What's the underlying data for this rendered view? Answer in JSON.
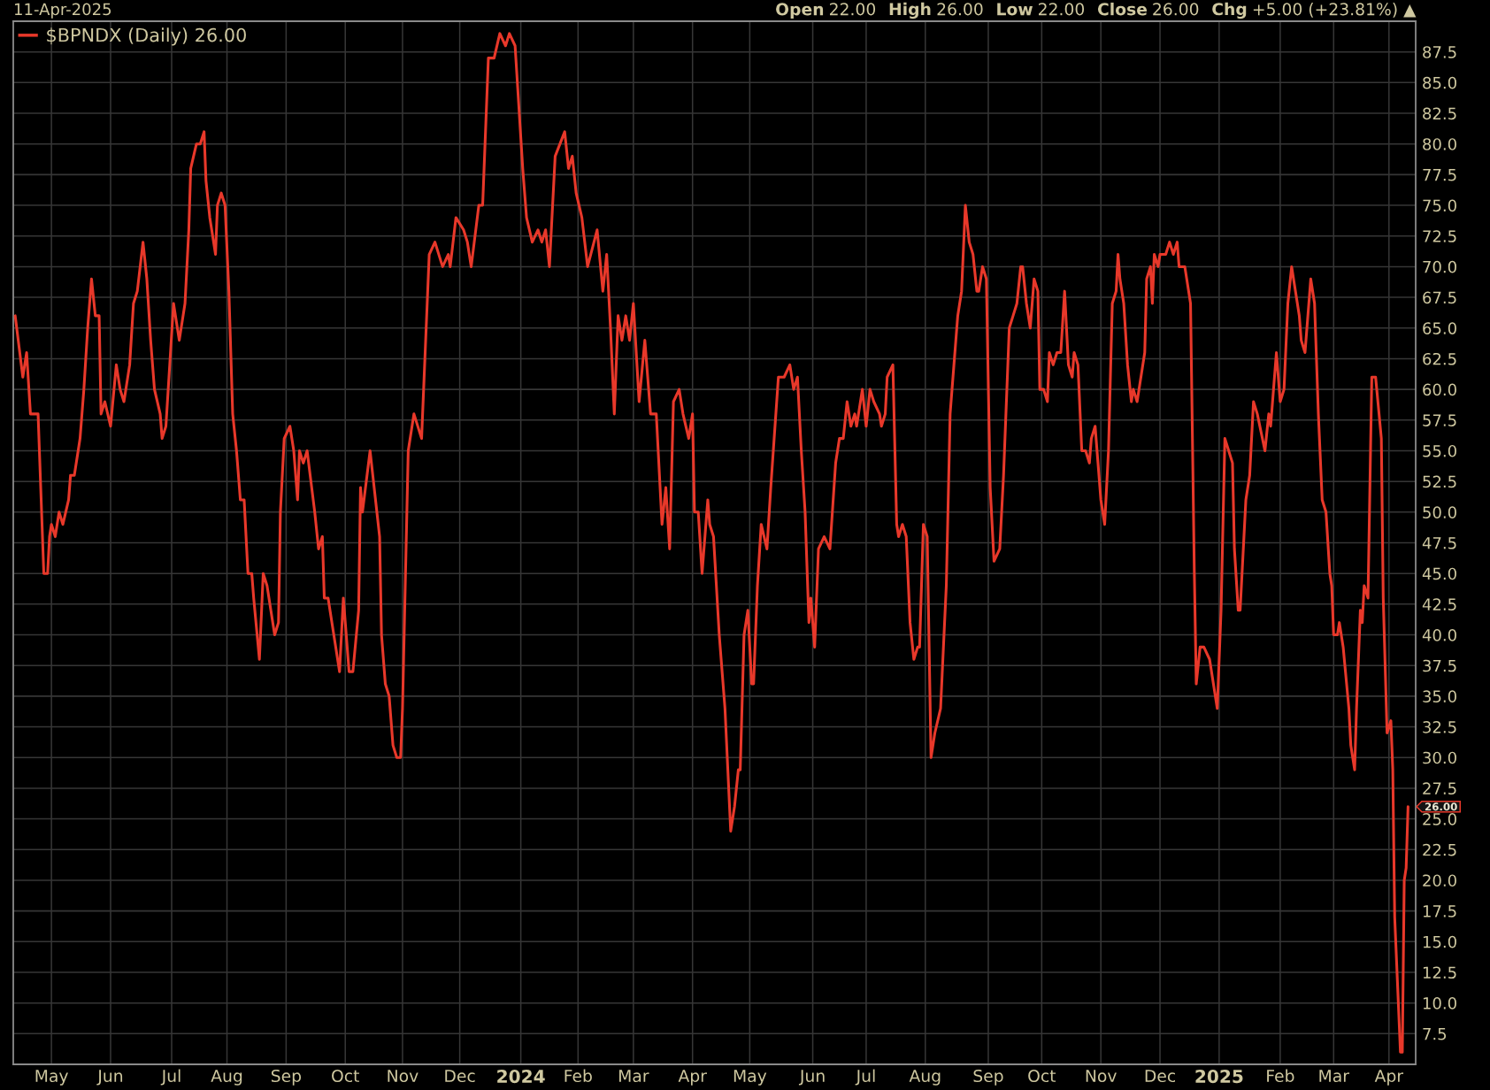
{
  "chart_data": {
    "type": "line",
    "annotations": [
      "11-Apr-2025",
      "Open 22.00",
      "High 26.00",
      "Low 22.00",
      "Close 26.00",
      "Chg +5.00 (+23.81%) ▲",
      {
        "text": "26.00",
        "x": "2025-04-11",
        "y": 26
      }
    ],
    "x": [
      "2023-04-12",
      "2023-04-16",
      "2023-04-18",
      "2023-04-20",
      "2023-04-24",
      "2023-04-27",
      "2023-04-29",
      "2023-04-30",
      "2023-05-01",
      "2023-05-03",
      "2023-05-05",
      "2023-05-07",
      "2023-05-10",
      "2023-05-11",
      "2023-05-13",
      "2023-05-15",
      "2023-05-16",
      "2023-05-18",
      "2023-05-20",
      "2023-05-22",
      "2023-05-24",
      "2023-05-26",
      "2023-05-27",
      "2023-05-29",
      "2023-06-01",
      "2023-06-04",
      "2023-06-06",
      "2023-06-08",
      "2023-06-11",
      "2023-06-13",
      "2023-06-15",
      "2023-06-18",
      "2023-06-20",
      "2023-06-22",
      "2023-06-24",
      "2023-06-27",
      "2023-06-28",
      "2023-06-30",
      "2023-07-02",
      "2023-07-04",
      "2023-07-07",
      "2023-07-10",
      "2023-07-12",
      "2023-07-13",
      "2023-07-16",
      "2023-07-18",
      "2023-07-20",
      "2023-07-21",
      "2023-07-23",
      "2023-07-26",
      "2023-07-27",
      "2023-07-29",
      "2023-07-31",
      "2023-08-02",
      "2023-08-04",
      "2023-08-06",
      "2023-08-08",
      "2023-08-10",
      "2023-08-12",
      "2023-08-14",
      "2023-08-15",
      "2023-08-18",
      "2023-08-20",
      "2023-08-22",
      "2023-08-25",
      "2023-08-26",
      "2023-08-28",
      "2023-08-29",
      "2023-08-31",
      "2023-09-03",
      "2023-09-05",
      "2023-09-07",
      "2023-09-08",
      "2023-09-10",
      "2023-09-12",
      "2023-09-16",
      "2023-09-18",
      "2023-09-20",
      "2023-09-21",
      "2023-09-23",
      "2023-09-25",
      "2023-09-29",
      "2023-10-01",
      "2023-10-04",
      "2023-10-06",
      "2023-10-09",
      "2023-10-10",
      "2023-10-11",
      "2023-10-15",
      "2023-10-20",
      "2023-10-21",
      "2023-10-23",
      "2023-10-25",
      "2023-10-27",
      "2023-10-29",
      "2023-10-31",
      "2023-11-01",
      "2023-11-04",
      "2023-11-07",
      "2023-11-11",
      "2023-11-15",
      "2023-11-18",
      "2023-11-22",
      "2023-11-25",
      "2023-11-26",
      "2023-11-29",
      "2023-12-03",
      "2023-12-05",
      "2023-12-07",
      "2023-12-11",
      "2023-12-13",
      "2023-12-16",
      "2023-12-19",
      "2023-12-22",
      "2023-12-25",
      "2023-12-27",
      "2023-12-30",
      "2024-01-03",
      "2024-01-05",
      "2024-01-08",
      "2024-01-11",
      "2024-01-13",
      "2024-01-15",
      "2024-01-17",
      "2024-01-20",
      "2024-01-25",
      "2024-01-27",
      "2024-01-29",
      "2024-01-31",
      "2024-02-03",
      "2024-02-06",
      "2024-02-11",
      "2024-02-14",
      "2024-02-16",
      "2024-02-18",
      "2024-02-20",
      "2024-02-22",
      "2024-02-24",
      "2024-02-26",
      "2024-02-28",
      "2024-03-01",
      "2024-03-04",
      "2024-03-07",
      "2024-03-10",
      "2024-03-13",
      "2024-03-16",
      "2024-03-18",
      "2024-03-20",
      "2024-03-22",
      "2024-03-25",
      "2024-03-27",
      "2024-03-30",
      "2024-04-01",
      "2024-04-02",
      "2024-04-04",
      "2024-04-06",
      "2024-04-09",
      "2024-04-10",
      "2024-04-12",
      "2024-04-15",
      "2024-04-18",
      "2024-04-21",
      "2024-04-23",
      "2024-04-25",
      "2024-04-26",
      "2024-04-28",
      "2024-04-30",
      "2024-05-02",
      "2024-05-03",
      "2024-05-05",
      "2024-05-07",
      "2024-05-10",
      "2024-05-12",
      "2024-05-16",
      "2024-05-19",
      "2024-05-22",
      "2024-05-24",
      "2024-05-26",
      "2024-05-28",
      "2024-05-30",
      "2024-06-01",
      "2024-06-02",
      "2024-06-04",
      "2024-06-06",
      "2024-06-09",
      "2024-06-12",
      "2024-06-15",
      "2024-06-17",
      "2024-06-19",
      "2024-06-21",
      "2024-06-23",
      "2024-06-25",
      "2024-06-26",
      "2024-06-29",
      "2024-07-01",
      "2024-07-03",
      "2024-07-05",
      "2024-07-08",
      "2024-07-09",
      "2024-07-11",
      "2024-07-12",
      "2024-07-15",
      "2024-07-17",
      "2024-07-18",
      "2024-07-20",
      "2024-07-22",
      "2024-07-24",
      "2024-07-26",
      "2024-07-28",
      "2024-07-29",
      "2024-07-31",
      "2024-08-02",
      "2024-08-04",
      "2024-08-06",
      "2024-08-09",
      "2024-08-12",
      "2024-08-14",
      "2024-08-17",
      "2024-08-18",
      "2024-08-20",
      "2024-08-22",
      "2024-08-24",
      "2024-08-26",
      "2024-08-28",
      "2024-08-29",
      "2024-08-31",
      "2024-09-02",
      "2024-09-04",
      "2024-09-06",
      "2024-09-09",
      "2024-09-11",
      "2024-09-14",
      "2024-09-16",
      "2024-09-18",
      "2024-09-20",
      "2024-09-21",
      "2024-09-23",
      "2024-09-25",
      "2024-09-27",
      "2024-09-29",
      "2024-09-30",
      "2024-10-02",
      "2024-10-04",
      "2024-10-05",
      "2024-10-07",
      "2024-10-09",
      "2024-10-11",
      "2024-10-13",
      "2024-10-15",
      "2024-10-17",
      "2024-10-18",
      "2024-10-20",
      "2024-10-22",
      "2024-10-24",
      "2024-10-26",
      "2024-10-27",
      "2024-10-29",
      "2024-10-31",
      "2024-11-01",
      "2024-11-03",
      "2024-11-05",
      "2024-11-07",
      "2024-11-09",
      "2024-11-10",
      "2024-11-11",
      "2024-11-13",
      "2024-11-15",
      "2024-11-17",
      "2024-11-18",
      "2024-11-20",
      "2024-11-22",
      "2024-11-24",
      "2024-11-25",
      "2024-11-27",
      "2024-11-28",
      "2024-11-29",
      "2024-12-01",
      "2024-12-02",
      "2024-12-05",
      "2024-12-07",
      "2024-12-09",
      "2024-12-11",
      "2024-12-12",
      "2024-12-15",
      "2024-12-16",
      "2024-12-18",
      "2024-12-20",
      "2024-12-21",
      "2024-12-23",
      "2024-12-25",
      "2024-12-28",
      "2024-12-30",
      "2025-01-01",
      "2025-01-03",
      "2025-01-05",
      "2025-01-07",
      "2025-01-09",
      "2025-01-10",
      "2025-01-12",
      "2025-01-13",
      "2025-01-16",
      "2025-01-18",
      "2025-01-20",
      "2025-01-22",
      "2025-01-26",
      "2025-01-28",
      "2025-01-29",
      "2025-02-01",
      "2025-02-03",
      "2025-02-05",
      "2025-02-07",
      "2025-02-09",
      "2025-02-11",
      "2025-02-13",
      "2025-02-14",
      "2025-02-16",
      "2025-02-18",
      "2025-02-19",
      "2025-02-21",
      "2025-02-23",
      "2025-02-25",
      "2025-02-27",
      "2025-03-01",
      "2025-03-02",
      "2025-03-03",
      "2025-03-05",
      "2025-03-06",
      "2025-03-08",
      "2025-03-11",
      "2025-03-12",
      "2025-03-14",
      "2025-03-15",
      "2025-03-17",
      "2025-03-18",
      "2025-03-19",
      "2025-03-21",
      "2025-03-23",
      "2025-03-25",
      "2025-03-28",
      "2025-03-29",
      "2025-03-31",
      "2025-04-02",
      "2025-04-03",
      "2025-04-04",
      "2025-04-07",
      "2025-04-08",
      "2025-04-09",
      "2025-04-10",
      "2025-04-11"
    ],
    "series": [
      {
        "name": "$BPNDX (Daily) 26.00",
        "color": "#e8382a",
        "values": [
          66,
          61,
          63,
          58,
          58,
          45,
          45,
          48,
          49,
          48,
          50,
          49,
          51,
          53,
          53,
          55,
          56,
          60,
          65,
          69,
          66,
          66,
          58,
          59,
          57,
          62,
          60,
          59,
          62,
          67,
          68,
          72,
          69,
          64,
          60,
          58,
          56,
          57,
          62,
          67,
          64,
          67,
          73,
          78,
          80,
          80,
          81,
          77,
          74,
          71,
          75,
          76,
          75,
          68,
          58,
          55,
          51,
          51,
          45,
          45,
          43,
          38,
          45,
          44,
          41,
          40,
          41,
          50,
          56,
          57,
          55,
          51,
          55,
          54,
          55,
          50,
          47,
          48,
          43,
          43,
          41,
          37,
          43,
          37,
          37,
          42,
          52,
          50,
          55,
          48,
          40,
          36,
          35,
          31,
          30,
          30,
          34,
          55,
          58,
          56,
          71,
          72,
          70,
          71,
          70,
          74,
          73,
          72,
          70,
          75,
          75,
          87,
          87,
          89,
          88,
          89,
          88,
          78,
          74,
          72,
          73,
          72,
          73,
          70,
          79,
          81,
          78,
          79,
          76,
          74,
          70,
          73,
          68,
          71,
          65,
          58,
          66,
          64,
          66,
          64,
          67,
          59,
          64,
          58,
          58,
          49,
          52,
          47,
          59,
          60,
          58,
          56,
          58,
          50,
          50,
          45,
          51,
          49,
          48,
          40,
          34,
          24,
          26,
          29,
          29,
          40,
          42,
          36,
          36,
          44,
          49,
          47,
          52,
          61,
          61,
          62,
          60,
          61,
          55,
          50,
          41,
          43,
          39,
          47,
          48,
          47,
          54,
          56,
          56,
          59,
          57,
          58,
          57,
          60,
          57,
          60,
          59,
          58,
          57,
          58,
          61,
          62,
          49,
          48,
          49,
          48,
          41,
          38,
          39,
          39,
          49,
          48,
          30,
          32,
          34,
          44,
          58,
          64,
          66,
          68,
          75,
          72,
          71,
          68,
          68,
          70,
          69,
          52,
          46,
          47,
          53,
          65,
          66,
          67,
          70,
          70,
          67,
          65,
          69,
          68,
          60,
          60,
          59,
          63,
          62,
          63,
          63,
          68,
          62,
          61,
          63,
          62,
          55,
          55,
          54,
          56,
          57,
          53,
          51,
          49,
          55,
          67,
          68,
          71,
          69,
          67,
          62,
          59,
          60,
          59,
          61,
          63,
          69,
          70,
          67,
          71,
          70,
          71,
          71,
          72,
          71,
          72,
          70,
          70,
          69,
          67,
          45,
          36,
          39,
          39,
          38,
          36,
          34,
          42,
          56,
          55,
          54,
          47,
          42,
          42,
          51,
          53,
          59,
          58,
          55,
          58,
          57,
          63,
          59,
          60,
          67,
          70,
          68,
          66,
          64,
          63,
          67,
          69,
          67,
          58,
          51,
          50,
          45,
          44,
          40,
          40,
          41,
          39,
          34,
          31,
          29,
          34,
          42,
          41,
          44,
          43,
          61,
          61,
          56,
          43,
          32,
          33,
          29,
          17,
          6,
          6,
          20,
          21,
          26
        ]
      }
    ],
    "xlim": [
      "2023-04-11",
      "2025-04-15"
    ],
    "xticks": [
      {
        "value": "2023-05-01",
        "label": "May"
      },
      {
        "value": "2023-06-01",
        "label": "Jun"
      },
      {
        "value": "2023-07-03",
        "label": "Jul"
      },
      {
        "value": "2023-08-01",
        "label": "Aug"
      },
      {
        "value": "2023-09-01",
        "label": "Sep"
      },
      {
        "value": "2023-10-02",
        "label": "Oct"
      },
      {
        "value": "2023-11-01",
        "label": "Nov"
      },
      {
        "value": "2023-12-01",
        "label": "Dec"
      },
      {
        "value": "2024-01-02",
        "label": "2024"
      },
      {
        "value": "2024-02-01",
        "label": "Feb"
      },
      {
        "value": "2024-03-01",
        "label": "Mar"
      },
      {
        "value": "2024-04-01",
        "label": "Apr"
      },
      {
        "value": "2024-05-01",
        "label": "May"
      },
      {
        "value": "2024-06-03",
        "label": "Jun"
      },
      {
        "value": "2024-07-01",
        "label": "Jul"
      },
      {
        "value": "2024-08-01",
        "label": "Aug"
      },
      {
        "value": "2024-09-03",
        "label": "Sep"
      },
      {
        "value": "2024-10-01",
        "label": "Oct"
      },
      {
        "value": "2024-11-01",
        "label": "Nov"
      },
      {
        "value": "2024-12-02",
        "label": "Dec"
      },
      {
        "value": "2025-01-02",
        "label": "2025"
      },
      {
        "value": "2025-02-03",
        "label": "Feb"
      },
      {
        "value": "2025-03-03",
        "label": "Mar"
      },
      {
        "value": "2025-04-01",
        "label": "Apr"
      }
    ],
    "ylim": [
      5,
      90
    ],
    "yticks": [
      7.5,
      {
        "value": 10,
        "label": "10.0"
      },
      12.5,
      {
        "value": 15,
        "label": "15.0"
      },
      17.5,
      {
        "value": 20,
        "label": "20.0"
      },
      22.5,
      {
        "value": 25,
        "label": "25.0"
      },
      27.5,
      {
        "value": 30,
        "label": "30.0"
      },
      32.5,
      {
        "value": 35,
        "label": "35.0"
      },
      37.5,
      {
        "value": 40,
        "label": "40.0"
      },
      42.5,
      {
        "value": 45,
        "label": "45.0"
      },
      47.5,
      {
        "value": 50,
        "label": "50.0"
      },
      52.5,
      {
        "value": 55,
        "label": "55.0"
      },
      57.5,
      {
        "value": 60,
        "label": "60.0"
      },
      62.5,
      {
        "value": 65,
        "label": "65.0"
      },
      67.5,
      {
        "value": 70,
        "label": "70.0"
      },
      72.5,
      {
        "value": 75,
        "label": "75.0"
      },
      77.5,
      {
        "value": 80,
        "label": "80.0"
      },
      82.5,
      {
        "value": 85,
        "label": "85.0"
      },
      87.5
    ],
    "grid": true,
    "legend": "top left"
  }
}
